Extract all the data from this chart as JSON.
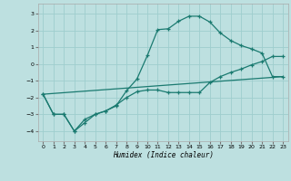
{
  "xlabel": "Humidex (Indice chaleur)",
  "background_color": "#bde0e0",
  "grid_color": "#9ecece",
  "line_color": "#1a7a70",
  "xlim": [
    -0.5,
    23.5
  ],
  "ylim": [
    -4.6,
    3.6
  ],
  "xticks": [
    0,
    1,
    2,
    3,
    4,
    5,
    6,
    7,
    8,
    9,
    10,
    11,
    12,
    13,
    14,
    15,
    16,
    17,
    18,
    19,
    20,
    21,
    22,
    23
  ],
  "yticks": [
    -4,
    -3,
    -2,
    -1,
    0,
    1,
    2,
    3
  ],
  "line1_x": [
    0,
    1,
    2,
    3,
    4,
    5,
    6,
    7,
    8,
    9,
    10,
    11,
    12,
    13,
    14,
    15,
    16,
    17,
    18,
    19,
    20,
    21,
    22,
    23
  ],
  "line1_y": [
    -1.8,
    -3.0,
    -3.0,
    -4.0,
    -3.5,
    -3.0,
    -2.8,
    -2.5,
    -1.6,
    -0.9,
    0.5,
    2.05,
    2.1,
    2.55,
    2.85,
    2.85,
    2.5,
    1.85,
    1.4,
    1.1,
    0.9,
    0.65,
    -0.75,
    -0.75
  ],
  "line2_x": [
    0,
    1,
    2,
    3,
    4,
    5,
    6,
    7,
    8,
    9,
    10,
    11,
    12,
    13,
    14,
    15,
    16,
    17,
    18,
    19,
    20,
    21,
    22,
    23
  ],
  "line2_y": [
    -1.8,
    -3.0,
    -3.0,
    -4.0,
    -3.3,
    -3.0,
    -2.8,
    -2.45,
    -2.0,
    -1.65,
    -1.55,
    -1.55,
    -1.7,
    -1.7,
    -1.7,
    -1.7,
    -1.1,
    -0.75,
    -0.5,
    -0.3,
    -0.05,
    0.15,
    0.45,
    0.45
  ],
  "line3_x": [
    0,
    23
  ],
  "line3_y": [
    -1.8,
    -0.75
  ]
}
